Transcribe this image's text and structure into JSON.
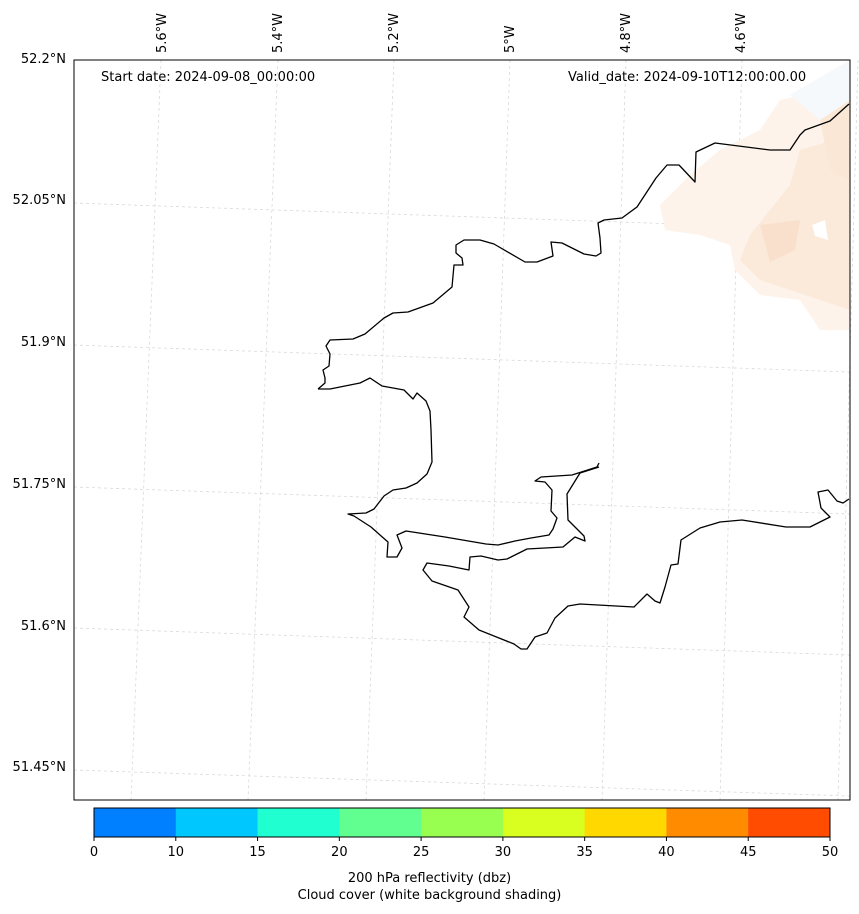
{
  "map": {
    "start_label": "Start date: 2024-09-08_00:00:00",
    "valid_label": "Valid_date: 2024-09-10T12:00:00.00",
    "lon_labels": [
      "5.6°W",
      "5.4°W",
      "5.2°W",
      "5°W",
      "4.8°W",
      "4.6°W"
    ],
    "lat_labels": [
      "52.2°N",
      "52.05°N",
      "51.9°N",
      "51.75°N",
      "51.6°N",
      "51.45°N"
    ],
    "coastline_color": "#000000",
    "gridline_color": "#d9d9d9",
    "cloud_shading_color": "#fbe6d4"
  },
  "colorbar": {
    "ticks": [
      "0",
      "10",
      "15",
      "20",
      "25",
      "30",
      "35",
      "40",
      "45",
      "50"
    ],
    "colors": [
      "#0080ff",
      "#00c8ff",
      "#20ffd0",
      "#60ff90",
      "#98ff50",
      "#d8ff20",
      "#ffd800",
      "#ff8c00",
      "#ff4c00"
    ],
    "caption_line1": "200 hPa reflectivity (dbz)",
    "caption_line2": "Cloud cover (white background shading)"
  }
}
